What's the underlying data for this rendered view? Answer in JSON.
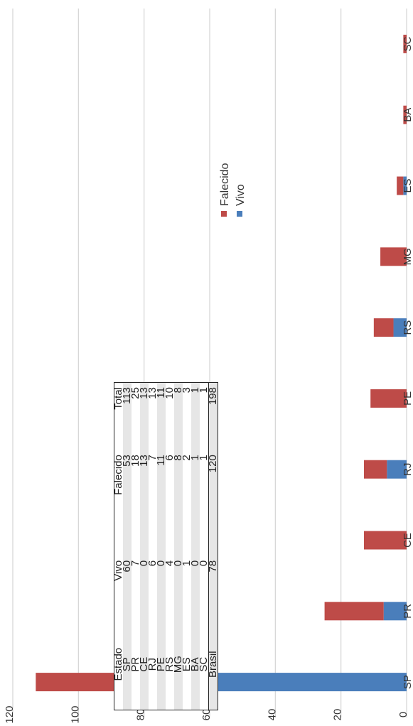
{
  "table": {
    "headers": [
      "Estado",
      "Vivo",
      "Falecido",
      "Total"
    ],
    "rows": [
      [
        "SP",
        "60",
        "53",
        "113"
      ],
      [
        "PR",
        "7",
        "18",
        "25"
      ],
      [
        "CE",
        "0",
        "13",
        "13"
      ],
      [
        "RJ",
        "6",
        "7",
        "13"
      ],
      [
        "PE",
        "0",
        "11",
        "11"
      ],
      [
        "RS",
        "4",
        "6",
        "10"
      ],
      [
        "MG",
        "0",
        "8",
        "8"
      ],
      [
        "ES",
        "1",
        "2",
        "3"
      ],
      [
        "BA",
        "0",
        "1",
        "1"
      ],
      [
        "SC",
        "0",
        "1",
        "1"
      ]
    ],
    "total": [
      "Brasil",
      "78",
      "120",
      "198"
    ]
  },
  "chart_data": {
    "type": "bar",
    "stacked": true,
    "orientation": "horizontal",
    "categories": [
      "SP",
      "PR",
      "CE",
      "RJ",
      "PE",
      "RS",
      "MG",
      "ES",
      "BA",
      "SC"
    ],
    "series": [
      {
        "name": "Vivo",
        "values": [
          60,
          7,
          0,
          6,
          0,
          4,
          0,
          1,
          0,
          0
        ],
        "color": "#4a7ebb"
      },
      {
        "name": "Falecido",
        "values": [
          53,
          18,
          13,
          7,
          11,
          6,
          8,
          2,
          1,
          1
        ],
        "color": "#be4b48"
      }
    ],
    "xlim": [
      0,
      120
    ],
    "ticks": [
      "0",
      "20",
      "40",
      "60",
      "80",
      "100",
      "120"
    ],
    "tick_values": [
      0,
      20,
      40,
      60,
      80,
      100,
      120
    ],
    "legend": [
      "Falecido",
      "Vivo"
    ],
    "legend_position": "right",
    "gridlines": true
  }
}
